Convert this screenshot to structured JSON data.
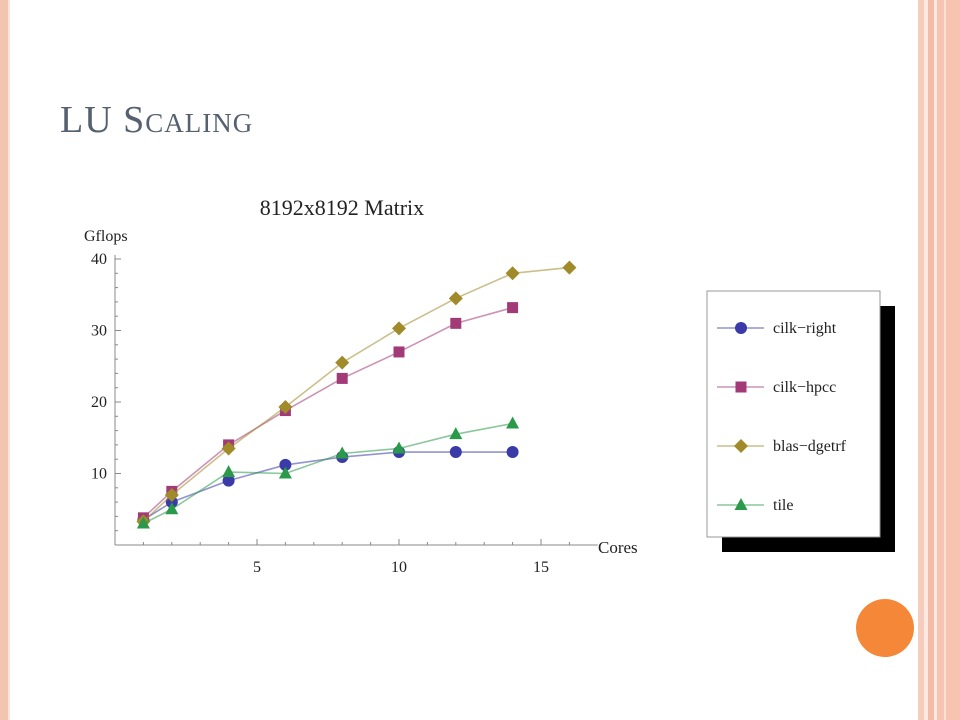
{
  "slide": {
    "title": "LU Scaling",
    "accent_color": "#f58838"
  },
  "chart_data": {
    "type": "line",
    "title": "8192x8192 Matrix",
    "xlabel": "Cores",
    "ylabel": "Gflops",
    "xlim": [
      0,
      17
    ],
    "ylim": [
      0,
      40
    ],
    "xticks": [
      5,
      10,
      15
    ],
    "yticks": [
      10,
      20,
      30,
      40
    ],
    "grid": false,
    "legend_position": "right",
    "series": [
      {
        "name": "cilk−right",
        "color": "#3a3aa8",
        "marker": "circle",
        "x": [
          1,
          2,
          4,
          6,
          8,
          10,
          12,
          14
        ],
        "y": [
          3.5,
          6,
          9,
          11.2,
          12.3,
          13,
          13,
          13
        ]
      },
      {
        "name": "cilk−hpcc",
        "color": "#a23a78",
        "marker": "square",
        "x": [
          1,
          2,
          4,
          6,
          8,
          10,
          12,
          14
        ],
        "y": [
          3.8,
          7.5,
          14,
          18.8,
          23.3,
          27,
          31,
          33.2
        ]
      },
      {
        "name": "blas−dgetrf",
        "color": "#a08a2a",
        "marker": "diamond",
        "x": [
          1,
          2,
          4,
          6,
          8,
          10,
          12,
          14,
          16
        ],
        "y": [
          3.3,
          7,
          13.5,
          19.3,
          25.5,
          30.3,
          34.5,
          38,
          38.8
        ]
      },
      {
        "name": "tile",
        "color": "#2a9a4a",
        "marker": "triangle",
        "x": [
          1,
          2,
          4,
          6,
          8,
          10,
          12,
          14
        ],
        "y": [
          3,
          5,
          10.2,
          10,
          12.8,
          13.5,
          15.5,
          17
        ]
      }
    ]
  }
}
